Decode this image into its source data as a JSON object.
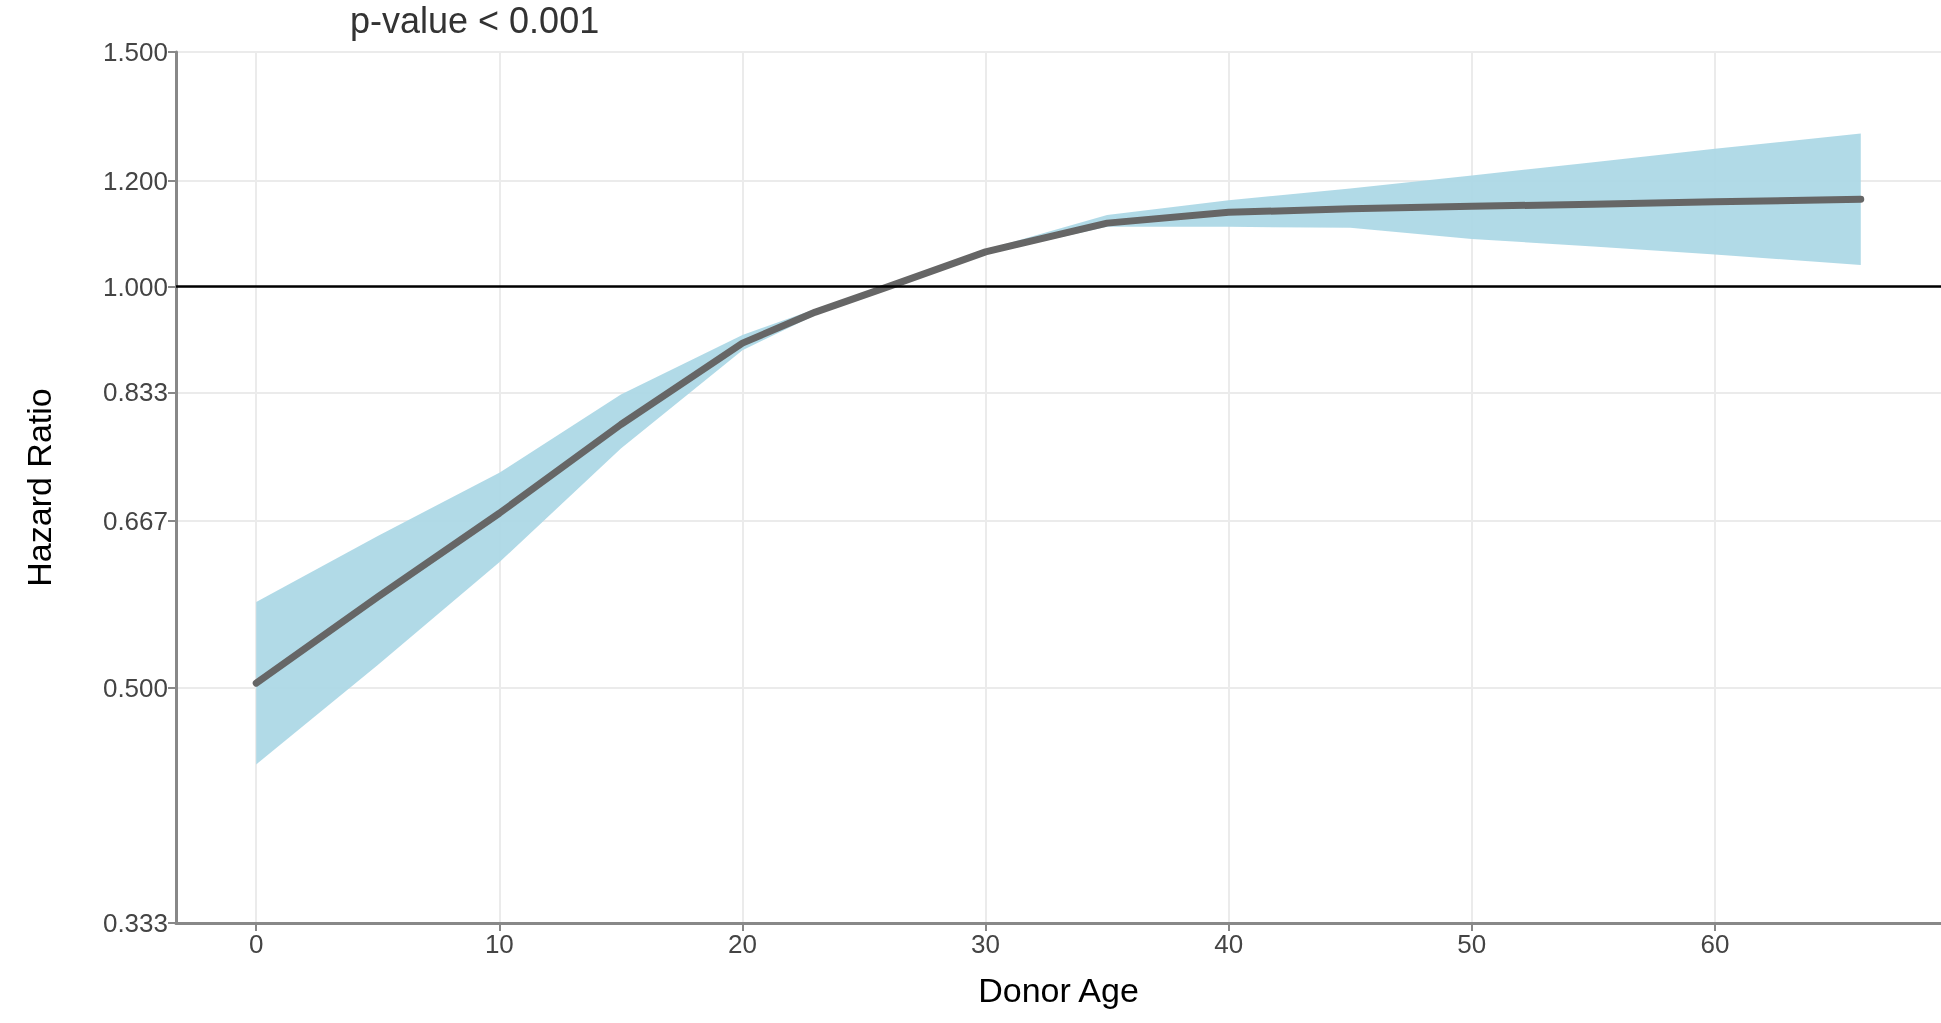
{
  "chart_data": {
    "type": "line",
    "xlabel": "Donor Age",
    "ylabel": "Hazard Ratio",
    "log": "y",
    "grid": true,
    "marker": "none",
    "line_style": "solid",
    "annotations": [
      "p-value < 0.001"
    ],
    "xlim": [
      -3.3,
      69.3
    ],
    "xticks": [
      0,
      10,
      20,
      30,
      40,
      50,
      60
    ],
    "ylim": [
      0.333,
      1.5
    ],
    "yticks": [
      {
        "value": 0.333,
        "label": "0.333"
      },
      {
        "value": 0.5,
        "label": "0.500"
      },
      {
        "value": 0.667,
        "label": "0.667"
      },
      {
        "value": 0.833,
        "label": "0.833"
      },
      {
        "value": 1,
        "label": "1.000"
      },
      {
        "value": 1.2,
        "label": "1.200"
      },
      {
        "value": 1.5,
        "label": "1.500"
      }
    ],
    "ref_lines": [
      {
        "axis": "y",
        "value": 1,
        "color": "#000000"
      }
    ],
    "series": [
      {
        "color": "#666666",
        "x": [
          0,
          5,
          10,
          15,
          20,
          23,
          26,
          30,
          35,
          40,
          45,
          50,
          55,
          60,
          66
        ],
        "values": [
          0.504,
          0.585,
          0.676,
          0.788,
          0.907,
          0.957,
          1.0,
          1.062,
          1.116,
          1.137,
          1.144,
          1.149,
          1.153,
          1.158,
          1.163
        ],
        "upper": [
          0.58,
          0.65,
          0.725,
          0.83,
          0.92,
          0.962,
          1.003,
          1.066,
          1.132,
          1.161,
          1.185,
          1.212,
          1.24,
          1.269,
          1.303
        ],
        "lower": [
          0.438,
          0.52,
          0.621,
          0.756,
          0.896,
          0.952,
          0.997,
          1.058,
          1.109,
          1.109,
          1.107,
          1.086,
          1.072,
          1.057,
          1.038
        ]
      }
    ]
  }
}
